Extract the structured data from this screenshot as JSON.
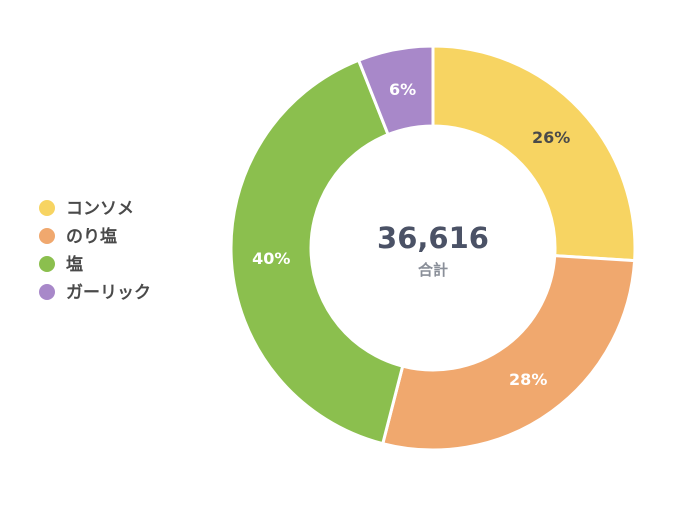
{
  "chart_data": {
    "type": "pie",
    "variant": "donut",
    "categories": [
      "コンソメ",
      "のり塩",
      "塩",
      "ガーリック"
    ],
    "values": [
      26,
      28,
      40,
      6
    ],
    "value_labels": [
      "26%",
      "28%",
      "40%",
      "6%"
    ],
    "colors": [
      "#f7d462",
      "#f0a86e",
      "#8bbf4e",
      "#a888c9"
    ],
    "label_colors": [
      "#4a4a4a",
      "#ffffff",
      "#ffffff",
      "#ffffff"
    ],
    "center": {
      "total": "36,616",
      "caption": "合計"
    },
    "legend_placement": "left"
  }
}
